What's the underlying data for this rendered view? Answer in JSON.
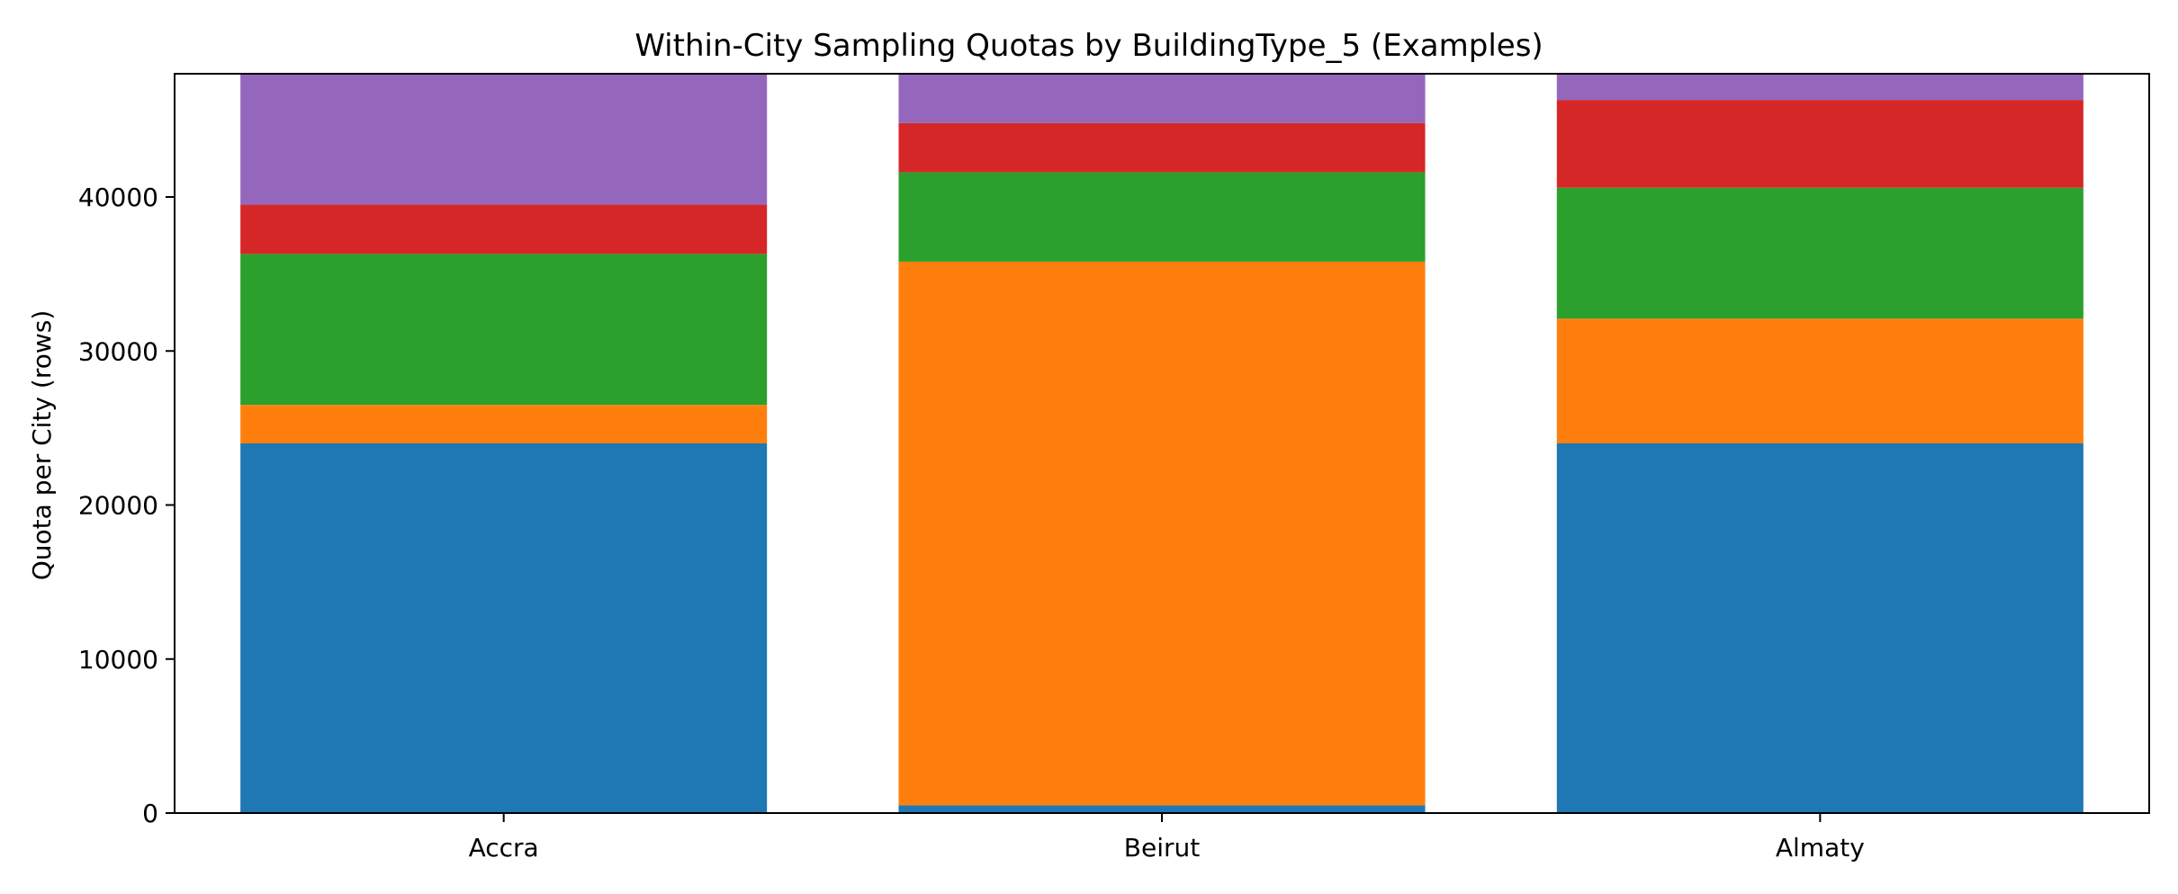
{
  "chart_data": {
    "type": "bar",
    "stacked": true,
    "title": "Within-City Sampling Quotas by BuildingType_5 (Examples)",
    "xlabel": "",
    "ylabel": "Quota per City (rows)",
    "ylim": [
      0,
      48000
    ],
    "yticks": [
      0,
      10000,
      20000,
      30000,
      40000
    ],
    "grid": false,
    "legend": "none",
    "categories": [
      "Accra",
      "Beirut",
      "Almaty"
    ],
    "series": [
      {
        "color": "#1f77b4",
        "values": [
          24000,
          500,
          24000
        ]
      },
      {
        "color": "#ff7f0e",
        "values": [
          2500,
          35300,
          8100
        ]
      },
      {
        "color": "#2ca02c",
        "values": [
          9800,
          5800,
          8500
        ]
      },
      {
        "color": "#d62728",
        "values": [
          3200,
          3200,
          5700
        ]
      },
      {
        "color": "#9467bd",
        "values": [
          8500,
          3200,
          1700
        ]
      }
    ]
  }
}
